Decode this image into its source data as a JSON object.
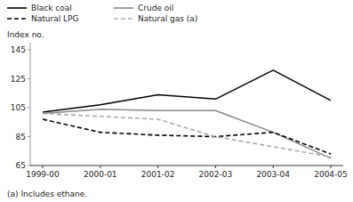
{
  "chart_data": {
    "type": "line",
    "y_label": "Index no.",
    "footnote": "(a) Includes ethane.",
    "categories": [
      "1999-00",
      "2000-01",
      "2001-02",
      "2002-03",
      "2003-04",
      "2004-05"
    ],
    "series": [
      {
        "name": "Black coal",
        "color": "#000000",
        "line_style": "solid",
        "values": [
          102,
          107,
          114,
          111,
          131,
          110
        ]
      },
      {
        "name": "Crude oil",
        "color": "#888888",
        "line_style": "solid",
        "values": [
          101,
          104,
          103,
          103,
          88,
          70
        ]
      },
      {
        "name": "Natural LPG",
        "color": "#000000",
        "line_style": "dashed",
        "values": [
          97,
          88,
          86,
          85,
          88,
          73
        ]
      },
      {
        "name": "Natural gas (a)",
        "color": "#aaaaaa",
        "line_style": "dashed",
        "values": [
          101,
          99,
          97,
          85,
          78,
          71
        ]
      }
    ],
    "ylim": [
      65,
      150
    ],
    "yticks": [
      65,
      85,
      105,
      125,
      145
    ],
    "grid": false,
    "legend": "upper left"
  }
}
